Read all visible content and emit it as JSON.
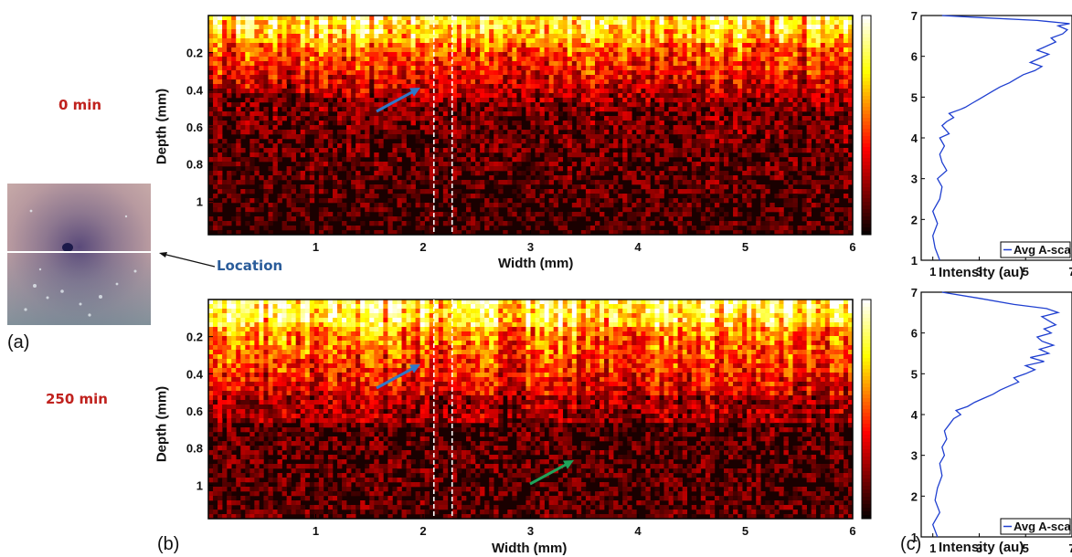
{
  "figure": {
    "panel_labels": {
      "a": "(a)",
      "b": "(b)",
      "c": "(c)"
    },
    "time_labels": [
      "0 min",
      "250 min"
    ],
    "location_label": "Location",
    "colors": {
      "time_label": "#c0221e",
      "location_label": "#2a5c9a",
      "blue_arrow": "#2f77c8",
      "green_arrow": "#1fa35a",
      "ascan_line": "#1f3fd0",
      "photo_line": "#ffffff",
      "dashed_lines": "#ffffff"
    },
    "icons": {
      "blue_arrow": "arrow-icon",
      "green_arrow": "arrow-icon",
      "location_arrow": "arrow-left-icon"
    }
  },
  "chart_data": [
    {
      "type": "heatmap",
      "panel": "(b) top",
      "time": "0 min",
      "xlabel": "Width (mm)",
      "ylabel": "Depth (mm)",
      "xticks": [
        1,
        2,
        3,
        4,
        5,
        6
      ],
      "yticks": [
        0.2,
        0.4,
        0.6,
        0.8,
        1
      ],
      "xlim": [
        0,
        6
      ],
      "ylim": [
        1.18,
        0
      ],
      "colormap": "hot",
      "dashed_vertical_lines_mm": [
        2.1,
        2.27
      ],
      "annotations": [
        {
          "type": "arrow",
          "color": "blue"
        }
      ]
    },
    {
      "type": "heatmap",
      "panel": "(b) bottom",
      "time": "250 min",
      "xlabel": "Width (mm)",
      "ylabel": "Depth (mm)",
      "xticks": [
        1,
        2,
        3,
        4,
        5,
        6
      ],
      "yticks": [
        0.2,
        0.4,
        0.6,
        0.8,
        1
      ],
      "xlim": [
        0,
        6
      ],
      "ylim": [
        1.18,
        0
      ],
      "colormap": "hot",
      "dashed_vertical_lines_mm": [
        2.1,
        2.27
      ],
      "annotations": [
        {
          "type": "arrow",
          "color": "blue"
        },
        {
          "type": "arrow",
          "color": "green"
        }
      ]
    },
    {
      "type": "line",
      "panel": "(c) top",
      "xlabel": "Intensity (au)",
      "xticks": [
        1,
        3,
        5,
        7
      ],
      "yticks": [
        1,
        2,
        3,
        4,
        5,
        6,
        7
      ],
      "xlim": [
        0.5,
        7
      ],
      "ylim": [
        1,
        7
      ],
      "legend": "Avg A-scan",
      "legend_position": "bottom-right",
      "series": [
        {
          "name": "Avg A-scan",
          "x": [
            1.3,
            1.1,
            1.0,
            1.2,
            1.0,
            1.3,
            1.4,
            1.2,
            1.6,
            1.4,
            1.3,
            1.5,
            1.3,
            1.7,
            1.4,
            1.6,
            1.9,
            1.7,
            2.2,
            2.4,
            2.7,
            3.0,
            3.3,
            3.6,
            3.9,
            4.3,
            4.6,
            4.9,
            5.4,
            5.7,
            5.2,
            5.6,
            6.0,
            5.5,
            5.9,
            6.3,
            6.1,
            6.6,
            6.8,
            6.4,
            6.9,
            5.5,
            3.0,
            1.4
          ],
          "y": [
            1.0,
            1.3,
            1.6,
            1.9,
            2.2,
            2.5,
            2.8,
            3.0,
            3.2,
            3.4,
            3.6,
            3.8,
            4.0,
            4.1,
            4.3,
            4.4,
            4.5,
            4.6,
            4.7,
            4.75,
            4.85,
            4.95,
            5.05,
            5.15,
            5.25,
            5.35,
            5.45,
            5.55,
            5.65,
            5.75,
            5.85,
            5.95,
            6.05,
            6.15,
            6.25,
            6.35,
            6.45,
            6.55,
            6.65,
            6.75,
            6.8,
            6.88,
            6.95,
            7.0
          ]
        }
      ]
    },
    {
      "type": "line",
      "panel": "(c) bottom",
      "xlabel": "Intensity (au)",
      "xticks": [
        1,
        3,
        5,
        7
      ],
      "yticks": [
        1,
        2,
        3,
        4,
        5,
        6,
        7
      ],
      "xlim": [
        0.5,
        7
      ],
      "ylim": [
        1,
        7
      ],
      "legend": "Avg A-scan",
      "legend_position": "bottom-right",
      "series": [
        {
          "name": "Avg A-scan",
          "x": [
            1.2,
            1.0,
            1.3,
            1.1,
            1.2,
            1.4,
            1.3,
            1.5,
            1.4,
            1.6,
            1.5,
            1.7,
            1.9,
            2.2,
            2.0,
            2.5,
            2.8,
            3.2,
            3.6,
            3.9,
            4.3,
            4.7,
            4.5,
            5.0,
            5.4,
            5.0,
            5.8,
            5.2,
            6.0,
            5.6,
            6.2,
            5.7,
            5.5,
            6.1,
            5.8,
            6.3,
            6.0,
            5.7,
            6.4,
            5.9,
            4.5,
            3.0,
            1.4
          ],
          "y": [
            1.0,
            1.3,
            1.6,
            1.9,
            2.2,
            2.5,
            2.8,
            3.0,
            3.2,
            3.4,
            3.6,
            3.75,
            3.9,
            4.0,
            4.1,
            4.2,
            4.3,
            4.4,
            4.5,
            4.6,
            4.7,
            4.8,
            4.9,
            5.0,
            5.1,
            5.2,
            5.3,
            5.4,
            5.5,
            5.6,
            5.7,
            5.8,
            5.9,
            6.0,
            6.1,
            6.2,
            6.3,
            6.4,
            6.5,
            6.6,
            6.7,
            6.85,
            7.0
          ]
        }
      ]
    }
  ]
}
